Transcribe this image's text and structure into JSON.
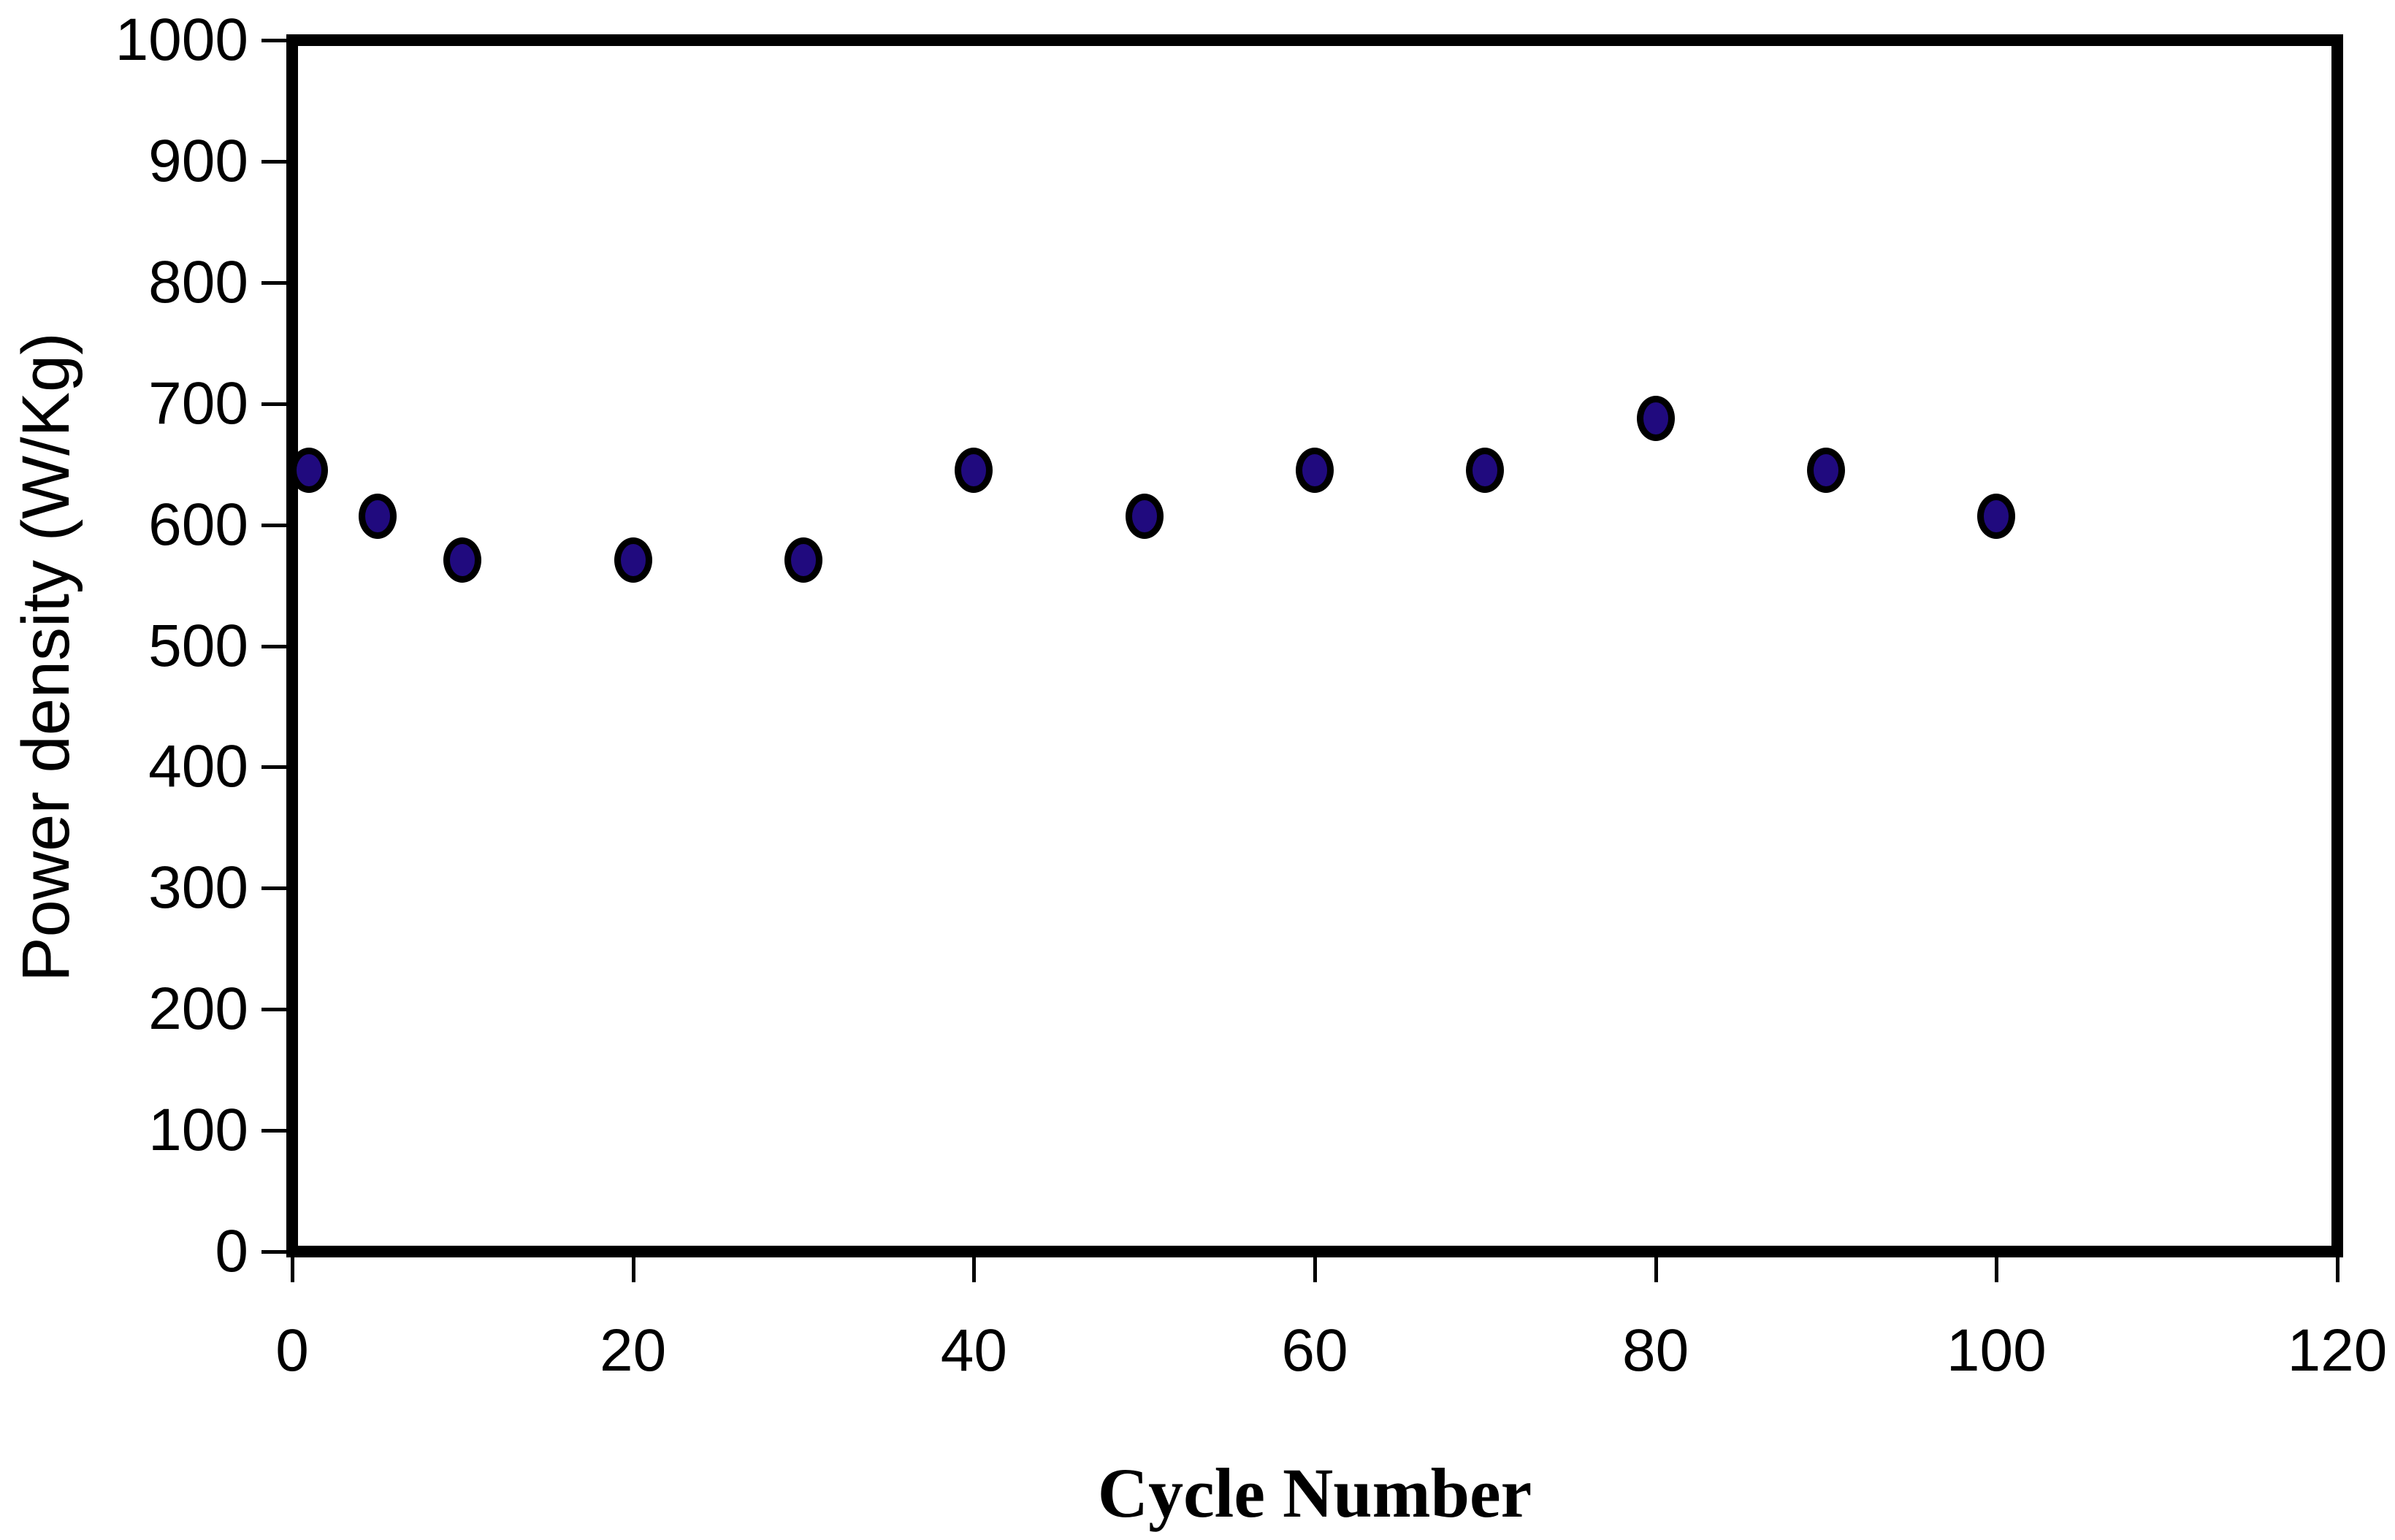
{
  "figure": {
    "background_color": "#ffffff",
    "axis_color": "#000000"
  },
  "chart_data": {
    "type": "scatter",
    "title": "",
    "xlabel": "Cycle Number",
    "ylabel": "Power density (W/Kg)",
    "x": [
      1,
      5,
      10,
      20,
      30,
      40,
      50,
      60,
      70,
      80,
      90,
      100
    ],
    "y": [
      645,
      607,
      571,
      571,
      571,
      645,
      607,
      645,
      645,
      688,
      645,
      607
    ],
    "xlim": [
      0,
      120
    ],
    "ylim": [
      0,
      1000
    ],
    "x_ticks": [
      0,
      20,
      40,
      60,
      80,
      100,
      120
    ],
    "y_ticks": [
      0,
      100,
      200,
      300,
      400,
      500,
      600,
      700,
      800,
      900,
      1000
    ],
    "grid": false,
    "legend": null,
    "marker": {
      "shape": "ellipse",
      "fill": "#200a7e",
      "stroke": "#000000"
    }
  }
}
